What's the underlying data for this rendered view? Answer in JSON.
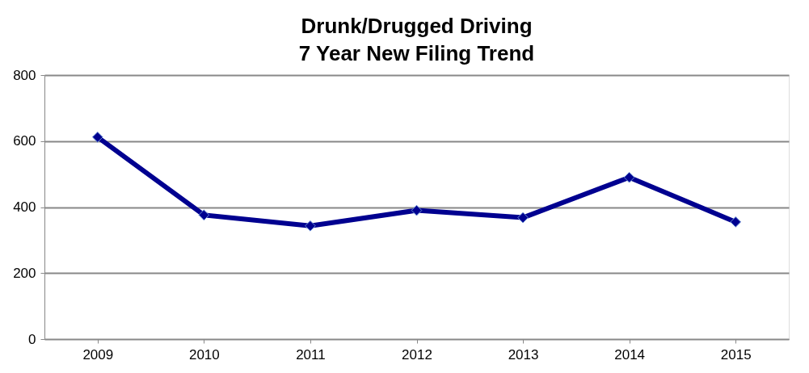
{
  "chart_data": {
    "type": "line",
    "title": "Drunk/Drugged Driving\n7 Year New Filing Trend",
    "categories": [
      "2009",
      "2010",
      "2011",
      "2012",
      "2013",
      "2014",
      "2015"
    ],
    "series": [
      {
        "color": "#000090",
        "values": [
          612,
          376,
          343,
          390,
          368,
          490,
          355
        ]
      }
    ],
    "ylim": [
      0,
      800
    ],
    "yticks": [
      0,
      200,
      400,
      600,
      800
    ],
    "grid": "y",
    "marker": "diamond",
    "line_style": "solid"
  }
}
